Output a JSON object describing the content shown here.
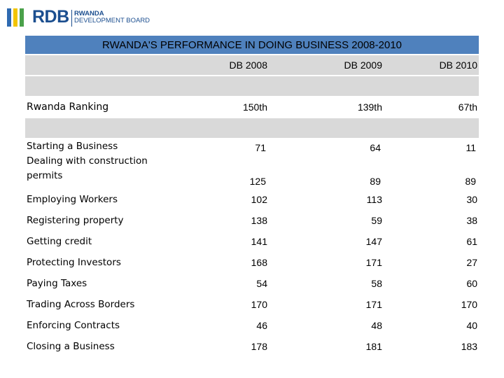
{
  "logo": {
    "wordmark": "RDB",
    "line1": "RWANDA",
    "line2": "DEVELOPMENT BOARD",
    "bar_colors": [
      "#2e6ab1",
      "#f2c400",
      "#4aa14a"
    ]
  },
  "title": "RWANDA'S PERFORMANCE IN DOING BUSINESS 2008-2010",
  "columns": [
    "DB 2008",
    "DB 2009",
    "DB 2010"
  ],
  "ranking": {
    "label": "Rwanda Ranking",
    "values": [
      "150th",
      "139th",
      "67th"
    ]
  },
  "rows": [
    {
      "label": "Starting a Business",
      "values": [
        "71",
        "64",
        "11"
      ]
    },
    {
      "label": "Dealing with construction permits",
      "values": [
        "125",
        "89",
        "89"
      ]
    },
    {
      "label": "Employing Workers",
      "values": [
        "102",
        "113",
        "30"
      ]
    },
    {
      "label": "Registering property",
      "values": [
        "138",
        "59",
        "38"
      ]
    },
    {
      "label": "Getting credit",
      "values": [
        "141",
        "147",
        "61"
      ]
    },
    {
      "label": "Protecting Investors",
      "values": [
        "168",
        "171",
        "27"
      ]
    },
    {
      "label": "Paying Taxes",
      "values": [
        "54",
        "58",
        "60"
      ]
    },
    {
      "label": "Trading Across Borders",
      "values": [
        "170",
        "171",
        "170"
      ]
    },
    {
      "label": "Enforcing Contracts",
      "values": [
        "46",
        "48",
        "40"
      ]
    },
    {
      "label": "Closing a Business",
      "values": [
        "178",
        "181",
        "183"
      ]
    }
  ]
}
